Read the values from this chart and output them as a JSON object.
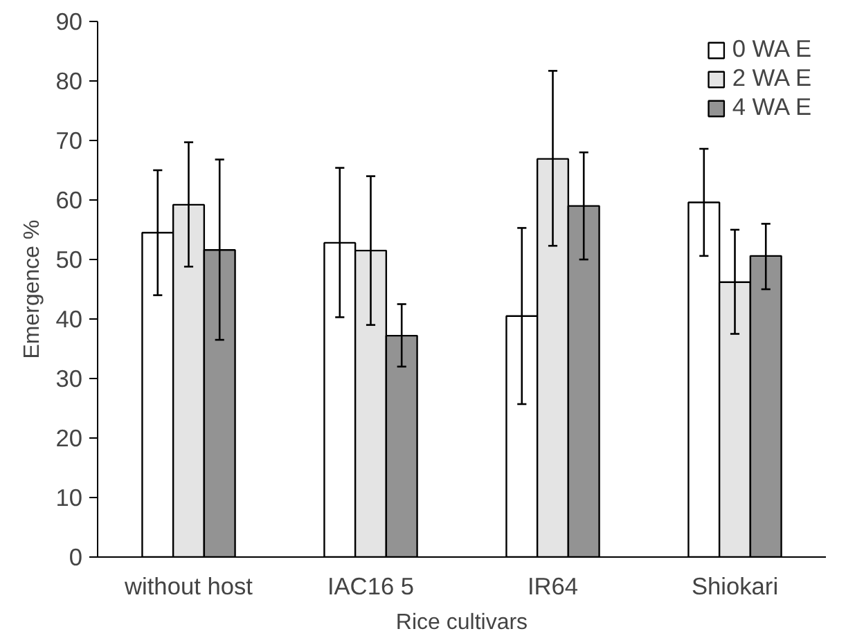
{
  "chart_data": {
    "type": "bar",
    "xlabel": "Rice cultivars",
    "ylabel": "Emergence %",
    "categories": [
      "without host",
      "IAC16 5",
      "IR64",
      "Shiokari"
    ],
    "series": [
      {
        "name": "0 WA E",
        "color": "#ffffff",
        "values": [
          54.5,
          52.8,
          40.5,
          59.6
        ],
        "errors": [
          [
            44,
            65
          ],
          [
            40.3,
            65.4
          ],
          [
            25.7,
            55.3
          ],
          [
            50.6,
            68.6
          ]
        ]
      },
      {
        "name": "2 WA E",
        "color": "#e4e4e4",
        "values": [
          59.2,
          51.5,
          66.9,
          46.2
        ],
        "errors": [
          [
            48.8,
            69.7
          ],
          [
            39,
            64
          ],
          [
            52.3,
            81.7
          ],
          [
            37.5,
            55
          ]
        ]
      },
      {
        "name": "4 WA E",
        "color": "#939393",
        "values": [
          51.6,
          37.2,
          59,
          50.6
        ],
        "errors": [
          [
            36.5,
            66.8
          ],
          [
            32,
            42.5
          ],
          [
            50,
            68
          ],
          [
            45,
            56
          ]
        ]
      }
    ],
    "ylim": [
      0,
      90
    ],
    "yticks": [
      0,
      10,
      20,
      30,
      40,
      50,
      60,
      70,
      80,
      90
    ],
    "grid": false,
    "legend": "top right"
  }
}
